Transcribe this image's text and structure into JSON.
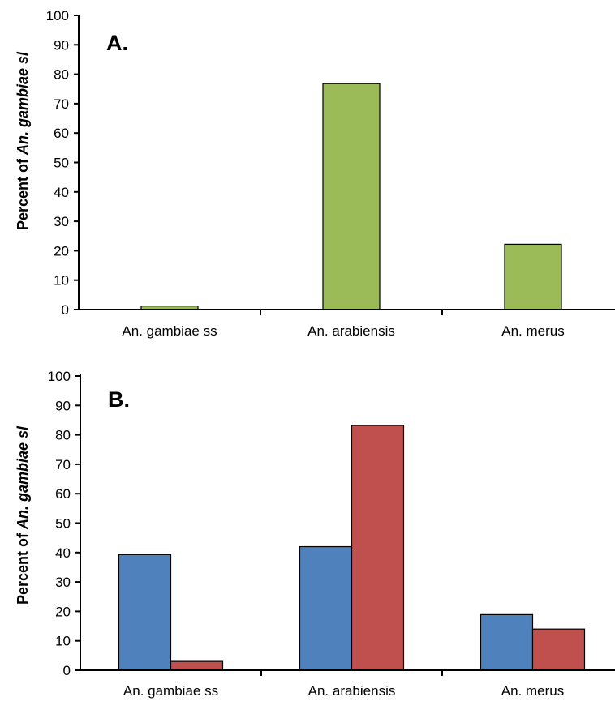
{
  "chart_data": [
    {
      "type": "bar",
      "panel_label": "A.",
      "ylabel_prefix": "Percent of",
      "ylabel_species": "An. gambiae sl",
      "ylim": [
        0,
        100
      ],
      "yticks": [
        "0",
        "10",
        "20",
        "30",
        "40",
        "50",
        "60",
        "70",
        "80",
        "90",
        "100"
      ],
      "categories": [
        "An. gambiae ss",
        "An. arabiensis",
        "An. merus"
      ],
      "series": [
        {
          "values": [
            1.2,
            76.8,
            22.2
          ],
          "color": "#9bbb59"
        }
      ]
    },
    {
      "type": "bar",
      "panel_label": "B.",
      "ylabel_prefix": "Percent of",
      "ylabel_species": "An. gambiae sl",
      "ylim": [
        0,
        100
      ],
      "yticks": [
        "0",
        "10",
        "20",
        "30",
        "40",
        "50",
        "60",
        "70",
        "80",
        "90",
        "100"
      ],
      "categories": [
        "An. gambiae ss",
        "An. arabiensis",
        "An. merus"
      ],
      "series": [
        {
          "values": [
            39.3,
            42.0,
            18.9
          ],
          "color": "#4f81bd"
        },
        {
          "values": [
            3.0,
            83.2,
            14.0
          ],
          "color": "#c0504d"
        }
      ]
    }
  ]
}
